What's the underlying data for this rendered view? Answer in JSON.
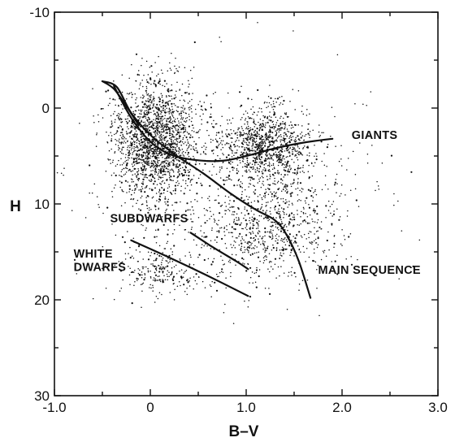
{
  "chart_data": {
    "type": "scatter",
    "title": "",
    "xlabel": "B–V",
    "ylabel": "H",
    "xlim": [
      -1.0,
      3.0
    ],
    "ylim": [
      30,
      -10
    ],
    "y_inverted": true,
    "grid": false,
    "x_ticks": [
      -1.0,
      0,
      1.0,
      2.0,
      3.0
    ],
    "x_tick_labels": [
      "-1.0",
      "0",
      "1.0",
      "2.0",
      "3.0"
    ],
    "y_ticks": [
      -10,
      0,
      10,
      20,
      30
    ],
    "y_tick_labels": [
      "-10",
      "0",
      "10",
      "20",
      "30"
    ],
    "annotations": [
      {
        "text": "GIANTS",
        "x": 2.1,
        "y": 3.2
      },
      {
        "text": "SUBDWARFS",
        "x": -0.42,
        "y": 11.9
      },
      {
        "text": "WHITE",
        "x": -0.8,
        "y": 15.6
      },
      {
        "text": "DWARFS",
        "x": -0.8,
        "y": 17.0
      },
      {
        "text": "MAIN SEQUENCE",
        "x": 1.75,
        "y": 17.3
      }
    ],
    "curves": [
      {
        "name": "main-sequence-upper",
        "points": [
          [
            -0.5,
            -2.8
          ],
          [
            -0.35,
            -2.2
          ],
          [
            -0.2,
            0.5
          ],
          [
            0,
            2.8
          ],
          [
            0.25,
            4.8
          ],
          [
            0.55,
            6.8
          ],
          [
            0.85,
            9.0
          ],
          [
            1.1,
            10.6
          ],
          [
            1.3,
            11.7
          ],
          [
            1.42,
            13.2
          ],
          [
            1.55,
            16.0
          ],
          [
            1.67,
            19.8
          ]
        ]
      },
      {
        "name": "main-sequence-lower",
        "points": [
          [
            -0.5,
            -2.8
          ],
          [
            -0.38,
            -2.0
          ],
          [
            -0.25,
            -0.2
          ],
          [
            -0.12,
            1.8
          ]
        ]
      },
      {
        "name": "giant-branch",
        "points": [
          [
            -0.38,
            -2.3
          ],
          [
            -0.2,
            1.0
          ],
          [
            0,
            3.5
          ],
          [
            0.2,
            4.8
          ],
          [
            0.45,
            5.4
          ],
          [
            0.75,
            5.5
          ],
          [
            1.0,
            5.0
          ],
          [
            1.3,
            4.2
          ],
          [
            1.6,
            3.6
          ],
          [
            1.9,
            3.2
          ]
        ]
      },
      {
        "name": "subdwarf-sequence",
        "points": [
          [
            0.42,
            13.0
          ],
          [
            0.65,
            14.5
          ],
          [
            0.9,
            16.0
          ],
          [
            1.02,
            16.8
          ]
        ]
      },
      {
        "name": "white-dwarf-sequence",
        "points": [
          [
            -0.2,
            13.8
          ],
          [
            0.2,
            15.6
          ],
          [
            0.6,
            17.5
          ],
          [
            1.02,
            19.6
          ]
        ]
      }
    ],
    "point_clouds": [
      {
        "region": "upper-main-sequence",
        "cx": 0.05,
        "cy": 3.5,
        "sx": 0.22,
        "sy": 3.0,
        "n": 1800
      },
      {
        "region": "giants",
        "cx": 1.2,
        "cy": 3.8,
        "sx": 0.22,
        "sy": 1.8,
        "n": 950
      },
      {
        "region": "lower-main-sequence",
        "cx": 1.25,
        "cy": 12.5,
        "sx": 0.32,
        "sy": 2.6,
        "n": 650
      },
      {
        "region": "white-dwarfs",
        "cx": 0.15,
        "cy": 17.0,
        "sx": 0.22,
        "sy": 1.4,
        "n": 230
      },
      {
        "region": "halo",
        "cx": 0.8,
        "cy": 8.0,
        "sx": 0.8,
        "sy": 5.5,
        "n": 600
      }
    ]
  }
}
